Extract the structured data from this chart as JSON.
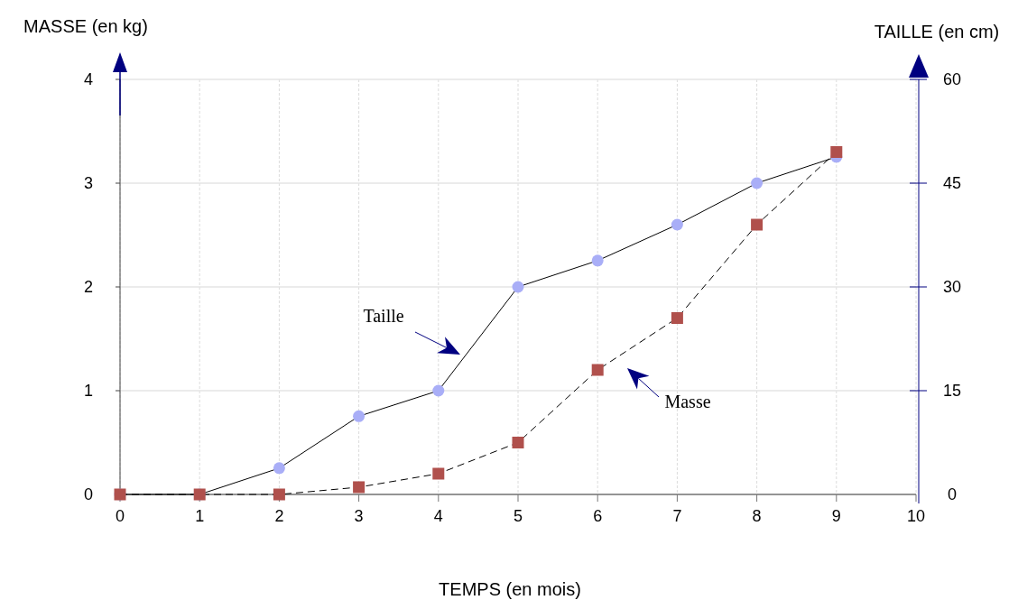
{
  "chart_data": {
    "type": "line",
    "xlabel": "TEMPS (en mois)",
    "ylabel": "MASSE (en kg)",
    "y2label": "TAILLE (en cm)",
    "x": [
      0,
      1,
      2,
      3,
      4,
      5,
      6,
      7,
      8,
      9
    ],
    "series": [
      {
        "axis": "y2",
        "color": "#a9aef7",
        "marker": "circle",
        "line_style": "solid",
        "values": [
          0,
          0,
          3.8,
          11.3,
          15,
          30,
          33.8,
          39,
          45,
          48.8
        ]
      },
      {
        "axis": "y",
        "color": "#b0504c",
        "marker": "square",
        "line_style": "dashed",
        "values": [
          0,
          0,
          0,
          0.07,
          0.2,
          0.5,
          1.2,
          1.7,
          2.6,
          3.3
        ]
      }
    ],
    "xlim": [
      0,
      10
    ],
    "xticks": [
      0,
      1,
      2,
      3,
      4,
      5,
      6,
      7,
      8,
      9,
      10
    ],
    "ylim": [
      0,
      4
    ],
    "yticks": [
      0,
      1,
      2,
      3,
      4
    ],
    "y2lim": [
      0,
      60
    ],
    "y2ticks": [
      0,
      15,
      30,
      45,
      60
    ],
    "grid": true,
    "annotations": [
      "Taille",
      "Masse"
    ]
  }
}
